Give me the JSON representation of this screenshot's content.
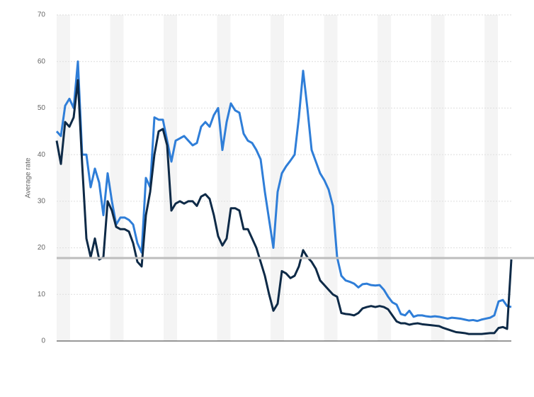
{
  "chart_data": {
    "type": "line",
    "y_label": "Average rate",
    "ylim": [
      0,
      70
    ],
    "yticks": [
      0,
      10,
      20,
      30,
      40,
      50,
      60,
      70
    ],
    "grid": true,
    "reference_line": {
      "value": 17.8,
      "color": "#bdbdbd"
    },
    "series": [
      {
        "color": "#2f7ed8",
        "values": [
          45,
          44,
          50.5,
          52,
          50,
          60,
          40,
          40,
          33,
          37,
          34,
          27,
          36,
          30,
          25,
          26.5,
          26.5,
          26,
          25,
          21,
          19,
          35,
          33,
          48,
          47.5,
          47.5,
          43,
          38.5,
          43,
          43.5,
          44,
          43,
          42,
          42.5,
          46,
          47,
          46,
          48.5,
          50,
          41,
          47,
          51,
          49.5,
          49,
          44.5,
          43,
          42.5,
          41,
          39,
          32,
          26,
          20,
          32,
          36,
          37.5,
          38.7,
          40,
          48,
          58,
          50,
          41,
          38.5,
          36,
          34.5,
          32.5,
          29,
          18,
          14,
          13,
          12.7,
          12.3,
          11.5,
          12.2,
          12.3,
          12,
          11.9,
          12,
          11,
          9.5,
          8.3,
          7.8,
          5.8,
          5.5,
          6.5,
          5.2,
          5.5,
          5.5,
          5.3,
          5.2,
          5.3,
          5.2,
          5.0,
          4.8,
          5.0,
          4.9,
          4.8,
          4.6,
          4.4,
          4.5,
          4.3,
          4.6,
          4.8,
          5.0,
          5.5,
          8.5,
          8.8,
          7.5,
          7.3
        ]
      },
      {
        "color": "#0e2a47",
        "values": [
          43,
          38,
          47,
          46,
          48,
          56,
          38,
          22,
          18,
          22,
          17.5,
          18,
          30,
          28,
          24.5,
          24,
          24,
          23.5,
          21,
          17,
          16,
          27,
          32,
          40,
          45,
          45.5,
          42,
          28,
          29.5,
          30,
          29.5,
          30,
          30,
          29,
          31,
          31.5,
          30.5,
          27,
          22.5,
          20.5,
          22,
          28.5,
          28.5,
          28,
          24,
          24,
          22,
          20,
          17,
          14,
          10,
          6.5,
          8,
          15,
          14.5,
          13.5,
          14,
          16,
          19.5,
          18,
          17,
          15.5,
          13,
          12,
          11,
          10,
          9.5,
          6,
          5.8,
          5.7,
          5.5,
          6,
          7,
          7.3,
          7.5,
          7.3,
          7.5,
          7.3,
          6.8,
          5.5,
          4.2,
          3.8,
          3.8,
          3.5,
          3.7,
          3.8,
          3.6,
          3.5,
          3.4,
          3.3,
          3.2,
          2.8,
          2.5,
          2.2,
          1.9,
          1.8,
          1.7,
          1.5,
          1.5,
          1.5,
          1.5,
          1.6,
          1.7,
          1.7,
          2.8,
          3.0,
          2.6,
          17.5
        ]
      }
    ]
  }
}
